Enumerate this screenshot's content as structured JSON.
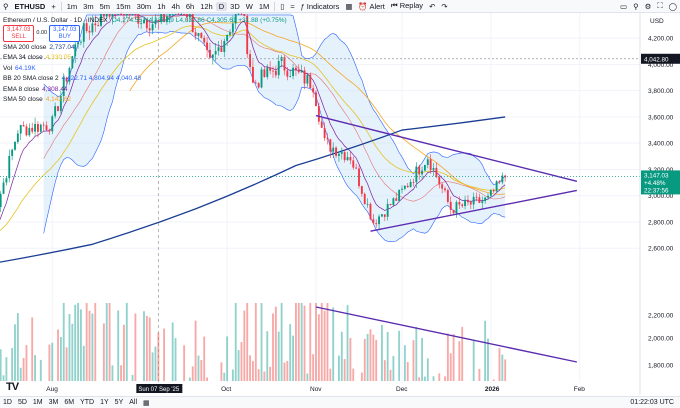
{
  "toolbar": {
    "symbol": "ETHUSD",
    "intervals": [
      "1m",
      "3m",
      "5m",
      "15m",
      "30m",
      "1h",
      "4h",
      "6h",
      "12h",
      "D",
      "3D",
      "W",
      "1M"
    ],
    "active_interval": "D",
    "indicators_label": "Indicators",
    "alert_label": "Alert",
    "replay_label": "Replay",
    "currency": "USD"
  },
  "legend": {
    "title": "Ethereum / U.S. Dollar · 1D · INDEX",
    "ohlc": "O4,274.55 H4,335.89 L4,032.86 C4,305.61 +31.88 (+0.75%)",
    "sell_price": "3,147.03",
    "sell_label": "SELL",
    "spread": "0.00",
    "buy_price": "3,147.03",
    "buy_label": "BUY",
    "indicators": [
      {
        "label": "SMA 200 close",
        "value": "2,737.04",
        "color": "#1c3f95"
      },
      {
        "label": "EMA 34 close",
        "value": "4,330.05",
        "color": "#e6c323"
      },
      {
        "label": "Vol",
        "value": "64.19K",
        "color": "#2962ff"
      },
      {
        "label": "BB 20 SMA close 2",
        "value": "4,422.71  4,804.94  4,040.48",
        "color": "#2962ff"
      },
      {
        "label": "EMA 8 close",
        "value": "4,308.44",
        "color": "#7b1fa2"
      },
      {
        "label": "SMA 50 close",
        "value": "4,142.62",
        "color": "#f5a623"
      }
    ]
  },
  "badges": {
    "current_price": "3,147.03",
    "change": "+4.48%",
    "countdown": "22:37:56",
    "horizontal_level": "4,042.80"
  },
  "bottom": {
    "ranges": [
      "1D",
      "5D",
      "1M",
      "3M",
      "6M",
      "YTD",
      "1Y",
      "5Y",
      "All"
    ],
    "time": "01:22:03 UTC",
    "crosshair_date": "Sun 07 Sep '25"
  },
  "colors": {
    "up": "#089981",
    "down": "#f23645",
    "bb_fill": "#cfe5f7",
    "bb_line": "#2962ff",
    "sma200": "#1c3f95",
    "ema34": "#e6c323",
    "ema8": "#7b1fa2",
    "sma50": "#f5a623",
    "trendline": "#5b2bb0",
    "level_line": "#9598a1"
  },
  "chart_data": {
    "type": "candlestick",
    "title": "Ethereum / U.S. Dollar · 1D · INDEX",
    "x_ticks": [
      "Aug",
      "Oct",
      "Nov",
      "Dec",
      "2026",
      "Feb"
    ],
    "y_ticks": [
      2600,
      2800,
      3000,
      3200,
      3400,
      3600,
      3800,
      4000,
      4200
    ],
    "volume_ticks": [
      "2,200",
      "2,000",
      "1,800"
    ],
    "ylim": [
      2480,
      4300
    ],
    "overlays": [
      "Bollinger Bands (20, 2)",
      "SMA 200",
      "EMA 34",
      "EMA 8",
      "SMA 50",
      "Volume"
    ],
    "annotations": [
      {
        "type": "horizontal_level",
        "value": 4042.8
      },
      {
        "type": "descending_trendline",
        "from": {
          "date": "2025-11-01",
          "value": 3610
        },
        "to": {
          "date": "2026-01-31",
          "value": 3110
        }
      },
      {
        "type": "ascending_trendline",
        "from": {
          "date": "2025-11-20",
          "value": 2730
        },
        "to": {
          "date": "2026-01-31",
          "value": 3040
        }
      },
      {
        "type": "volume_trendline",
        "from": "2025-11-01",
        "to": "2026-01-31"
      }
    ],
    "close_series": [
      {
        "date": "2025-07-10",
        "close": 2700
      },
      {
        "date": "2025-07-20",
        "close": 3500
      },
      {
        "date": "2025-08-01",
        "close": 3550
      },
      {
        "date": "2025-08-10",
        "close": 4200
      },
      {
        "date": "2025-08-22",
        "close": 4450
      },
      {
        "date": "2025-09-07",
        "close": 4300
      },
      {
        "date": "2025-09-15",
        "close": 4500
      },
      {
        "date": "2025-09-25",
        "close": 4000
      },
      {
        "date": "2025-10-06",
        "close": 4450
      },
      {
        "date": "2025-10-10",
        "close": 3850
      },
      {
        "date": "2025-10-20",
        "close": 4000
      },
      {
        "date": "2025-10-31",
        "close": 3850
      },
      {
        "date": "2025-11-04",
        "close": 3400
      },
      {
        "date": "2025-11-13",
        "close": 3300
      },
      {
        "date": "2025-11-21",
        "close": 2800
      },
      {
        "date": "2025-11-30",
        "close": 3000
      },
      {
        "date": "2025-12-10",
        "close": 3300
      },
      {
        "date": "2025-12-18",
        "close": 2900
      },
      {
        "date": "2025-12-31",
        "close": 2970
      },
      {
        "date": "2026-01-06",
        "close": 3147
      }
    ],
    "sma200_points": [
      {
        "date": "2025-07-10",
        "value": 2480
      },
      {
        "date": "2025-08-15",
        "value": 2630
      },
      {
        "date": "2025-09-20",
        "value": 2900
      },
      {
        "date": "2025-10-25",
        "value": 3230
      },
      {
        "date": "2025-12-01",
        "value": 3500
      },
      {
        "date": "2026-01-06",
        "value": 3600
      }
    ],
    "volume": [
      {
        "date": "2025-08-05",
        "value": 2200
      },
      {
        "date": "2025-08-25",
        "value": 2100
      },
      {
        "date": "2025-09-25",
        "value": 1900
      },
      {
        "date": "2025-10-10",
        "value": 2300
      },
      {
        "date": "2025-11-04",
        "value": 2200
      },
      {
        "date": "2025-11-21",
        "value": 1950
      },
      {
        "date": "2025-12-18",
        "value": 1800
      },
      {
        "date": "2026-01-06",
        "value": 1950
      }
    ]
  }
}
